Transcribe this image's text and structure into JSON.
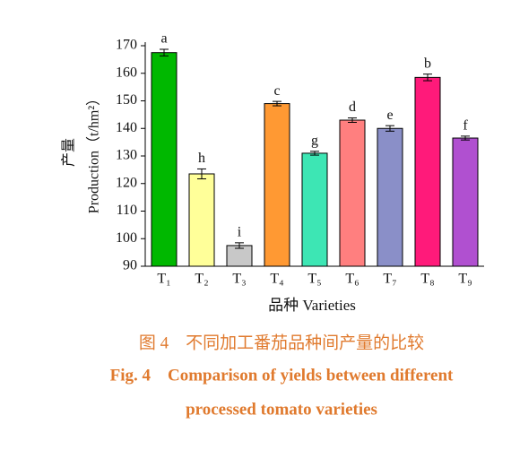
{
  "chart_data": {
    "type": "bar",
    "ylabel_cn": "产量",
    "ylabel": "Production（t/hm²）",
    "xlabel": "品种 Varieties",
    "categories": [
      "T₁",
      "T₂",
      "T₃",
      "T₄",
      "T₅",
      "T₆",
      "T₇",
      "T₈",
      "T₉"
    ],
    "values": [
      167.5,
      123.5,
      97.5,
      149,
      131,
      143,
      140,
      158.5,
      136.5
    ],
    "errors": [
      1.2,
      1.8,
      1,
      0.8,
      0.7,
      0.8,
      1,
      1.2,
      0.7
    ],
    "annotations": [
      "a",
      "h",
      "i",
      "c",
      "g",
      "d",
      "e",
      "b",
      "f"
    ],
    "colors": [
      "#00b800",
      "#ffff99",
      "#c8c8c8",
      "#ff9933",
      "#3de6b4",
      "#ff7f7f",
      "#8a8fc8",
      "#ff1a7a",
      "#b050d0"
    ],
    "ylim": [
      90,
      170
    ],
    "yticks": [
      90,
      100,
      110,
      120,
      130,
      140,
      150,
      160,
      170
    ],
    "caption": [
      "图 4　不同加工番茄品种间产量的比较",
      "Fig. 4　Comparison of yields between different",
      "processed tomato varieties"
    ]
  }
}
